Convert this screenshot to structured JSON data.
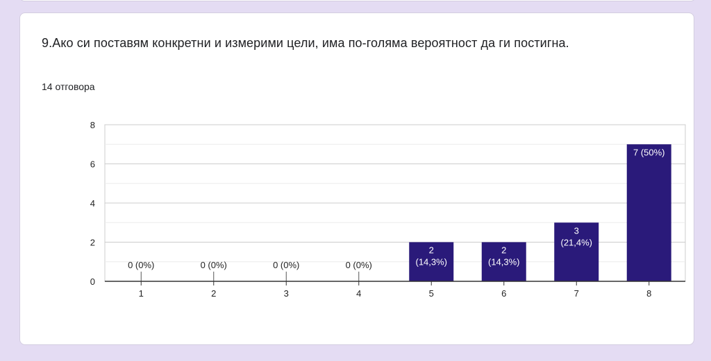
{
  "question": {
    "text": "9.Ако си поставям конкретни и измерими цели, има по-голяма вероятност да ги постигна.",
    "responses": "14 отговора"
  },
  "colors": {
    "bar": "#2a1a7a",
    "background": "#e4dcf3",
    "card": "#ffffff"
  },
  "chart_data": {
    "type": "bar",
    "title": "",
    "xlabel": "",
    "ylabel": "",
    "categories": [
      "1",
      "2",
      "3",
      "4",
      "5",
      "6",
      "7",
      "8"
    ],
    "values": [
      0,
      0,
      0,
      0,
      2,
      2,
      3,
      7
    ],
    "labels": [
      [
        "0 (0%)"
      ],
      [
        "0 (0%)"
      ],
      [
        "0 (0%)"
      ],
      [
        "0 (0%)"
      ],
      [
        "2",
        "(14,3%)"
      ],
      [
        "2",
        "(14,3%)"
      ],
      [
        "3",
        "(21,4%)"
      ],
      [
        "7 (50%)"
      ]
    ],
    "ylim": [
      0,
      8
    ],
    "yticks": [
      0,
      2,
      4,
      6,
      8
    ],
    "grid": true
  }
}
